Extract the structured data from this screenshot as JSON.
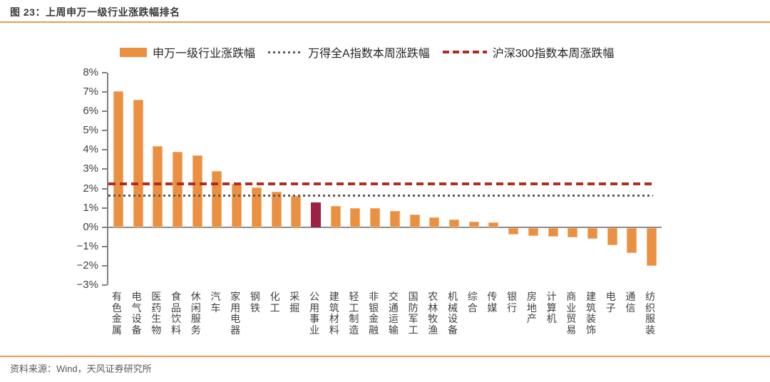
{
  "header": {
    "title": "图 23：上周申万一级行业涨跌幅排名"
  },
  "legend": [
    {
      "label": "申万一级行业涨跌幅",
      "marker": "bar-swatch",
      "color": "#eb8f41"
    },
    {
      "label": "万得全A指数本周涨跌幅",
      "marker": "dotted-line",
      "color": "#595959"
    },
    {
      "label": "沪深300指数本周涨跌幅",
      "marker": "dashed-line",
      "color": "#b02b20"
    }
  ],
  "chart_data": {
    "type": "bar",
    "title": "上周申万一级行业涨跌幅排名",
    "categories": [
      "有色金属",
      "电气设备",
      "医药生物",
      "食品饮料",
      "休闲服务",
      "汽车",
      "家用电器",
      "钢铁",
      "化工",
      "采掘",
      "公用事业",
      "建筑材料",
      "轻工制造",
      "非银金融",
      "交通运输",
      "国防军工",
      "农林牧渔",
      "机械设备",
      "综合",
      "传媒",
      "银行",
      "房地产",
      "计算机",
      "商业贸易",
      "建筑装饰",
      "电子",
      "通信",
      "纺织服装"
    ],
    "values": [
      7.05,
      6.6,
      4.2,
      3.9,
      3.7,
      2.9,
      2.25,
      2.05,
      1.85,
      1.6,
      1.3,
      1.1,
      1.0,
      1.0,
      0.85,
      0.65,
      0.5,
      0.4,
      0.3,
      0.25,
      -0.35,
      -0.4,
      -0.45,
      -0.5,
      -0.55,
      -0.9,
      -1.3,
      -1.95
    ],
    "unit": "%",
    "series_name": "申万一级行业涨跌幅",
    "bar_color": "#eb8f41",
    "bar_edge_color": "#f3b377",
    "highlight_index": 10,
    "highlight_color": "#9d2144",
    "reference_lines": [
      {
        "name": "沪深300指数本周涨跌幅",
        "value": 2.25,
        "style": "dashed",
        "color": "#b02b20"
      },
      {
        "name": "万得全A指数本周涨跌幅",
        "value": 1.65,
        "style": "dotted",
        "color": "#595959"
      }
    ],
    "ylim": [
      -3,
      8
    ],
    "ytick_step": 1,
    "ytick_labels": [
      "8%",
      "7%",
      "6%",
      "5%",
      "4%",
      "3%",
      "2%",
      "1%",
      "0%",
      "−1%",
      "−2%",
      "−3%"
    ],
    "xlabel": "",
    "ylabel": "",
    "grid": false,
    "legend_position": "top"
  },
  "footer": {
    "source": "资料来源：Wind，天风证券研究所"
  }
}
